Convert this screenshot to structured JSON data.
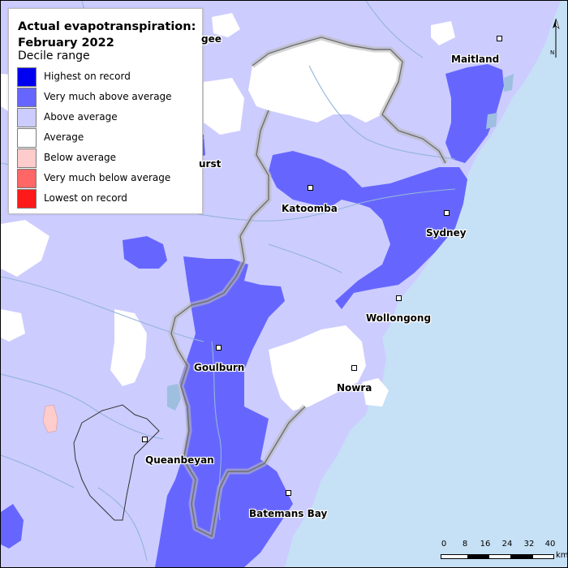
{
  "legend": {
    "title": "Actual evapotranspiration: February 2022",
    "subtitle": "Decile range",
    "items": [
      {
        "label": "Highest on record",
        "color": "#0000f0"
      },
      {
        "label": "Very much above average",
        "color": "#6666ff"
      },
      {
        "label": "Above average",
        "color": "#ccccff"
      },
      {
        "label": "Average",
        "color": "#ffffff"
      },
      {
        "label": "Below average",
        "color": "#ffcccc"
      },
      {
        "label": "Very much below average",
        "color": "#ff6666"
      },
      {
        "label": "Lowest on record",
        "color": "#ff1a1a"
      }
    ]
  },
  "towns": [
    {
      "name": "Maitland"
    },
    {
      "name": "Katoomba"
    },
    {
      "name": "Sydney"
    },
    {
      "name": "Wollongong"
    },
    {
      "name": "Goulburn"
    },
    {
      "name": "Nowra"
    },
    {
      "name": "Queanbeyan"
    },
    {
      "name": "Batemans Bay"
    }
  ],
  "partial_labels": {
    "mudgee_fragment": "gee",
    "bathurst_fragment": "urst"
  },
  "north_arrow": {
    "label": "N"
  },
  "scale_bar": {
    "ticks": [
      "0",
      "8",
      "16",
      "24",
      "32",
      "40"
    ],
    "unit": "km"
  },
  "colors": {
    "ocean": "#c6e0f6",
    "above_average": "#ccccff",
    "very_much_above": "#6666ff",
    "average": "#ffffff",
    "below_average": "#ffcccc",
    "rivers": "#94b4d8",
    "catchment_border": "#808080"
  }
}
